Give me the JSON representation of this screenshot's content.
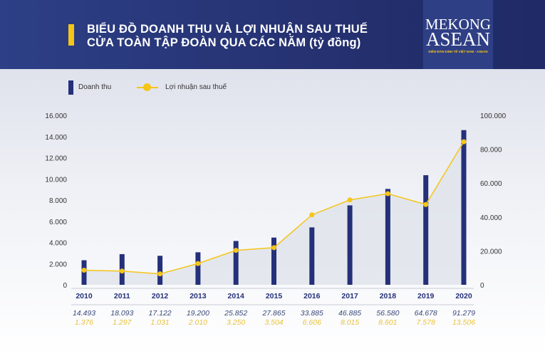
{
  "header": {
    "title_line1": "BIỂU ĐỒ DOANH THU VÀ LỢI NHUẬN SAU THUẾ",
    "title_line2": "CỬA TOÀN TẬP ĐOÀN QUA CÁC NĂM (tỷ đồng)"
  },
  "logo": {
    "line1": "MEKONG",
    "line2": "ASEAN",
    "tagline": "DIỄN ĐÀN KINH TẾ VIỆT NAM - ASEAN"
  },
  "colors": {
    "bar": "#25307a",
    "line": "#f5c518",
    "revenue_text": "#3a4a7a",
    "profit_text": "#e8c23a"
  },
  "chart_data": {
    "type": "bar+line",
    "legend": [
      "Doanh thu",
      "Lợi nhuận sau thuế"
    ],
    "legend_position": "top-left",
    "categories": [
      "2010",
      "2011",
      "2012",
      "2013",
      "2014",
      "2015",
      "2016",
      "2017",
      "2018",
      "2019",
      "2020"
    ],
    "series": [
      {
        "name": "Doanh thu",
        "type": "bar",
        "axis": "right",
        "values": [
          14493,
          18093,
          17122,
          19200,
          25852,
          27865,
          33885,
          46885,
          56580,
          64678,
          91279
        ],
        "labels": [
          "14.493",
          "18.093",
          "17.122",
          "19.200",
          "25.852",
          "27.865",
          "33.885",
          "46.885",
          "56.580",
          "64.678",
          "91.279"
        ]
      },
      {
        "name": "Lợi nhuận sau thuế",
        "type": "line",
        "axis": "left",
        "values": [
          1376,
          1297,
          1031,
          2010,
          3250,
          3504,
          6606,
          8015,
          8601,
          7578,
          13506
        ],
        "labels": [
          "1.376",
          "1.297",
          "1.031",
          "2.010",
          "3.250",
          "3.504",
          "6.606",
          "8.015",
          "8.601",
          "7.578",
          "13.506"
        ]
      }
    ],
    "left_axis": {
      "ylim": [
        0,
        16000
      ],
      "ticks": [
        "0",
        "2.000",
        "4.000",
        "6.000",
        "8.000",
        "10.000",
        "12.000",
        "14.000",
        "16.000"
      ]
    },
    "right_axis": {
      "ylim": [
        0,
        100000
      ],
      "ticks": [
        "0",
        "20.000",
        "40.000",
        "60.000",
        "80.000",
        "100.000"
      ]
    }
  }
}
